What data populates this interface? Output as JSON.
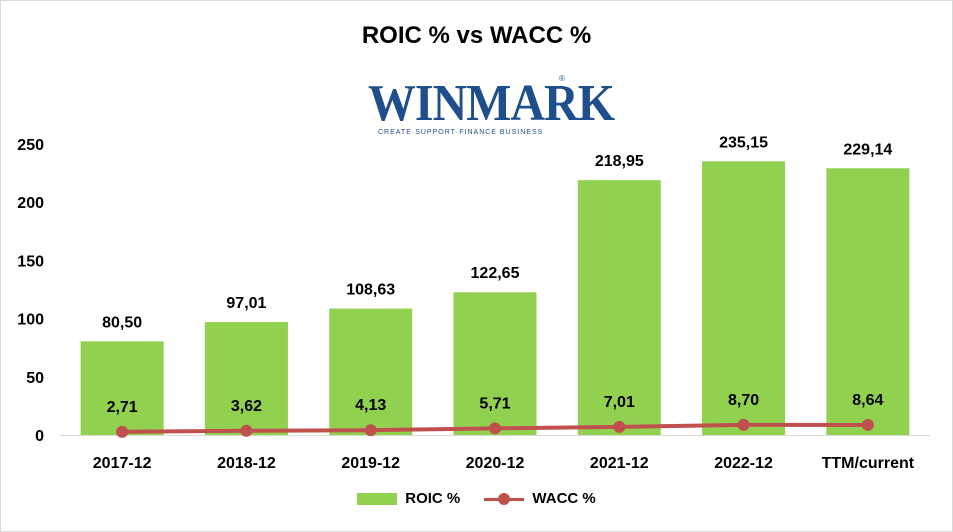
{
  "logo": {
    "text": "WINMARK",
    "registered": "®",
    "tagline": "CREATE·SUPPORT·FINANCE BUSINESS"
  },
  "chart_data": {
    "type": "bar",
    "title": "ROIC % vs WACC %",
    "categories": [
      "2017-12",
      "2018-12",
      "2019-12",
      "2020-12",
      "2021-12",
      "2022-12",
      "TTM/current"
    ],
    "series": [
      {
        "name": "ROIC %",
        "type": "bar",
        "color": "#92d050",
        "values": [
          80.5,
          97.01,
          108.63,
          122.65,
          218.95,
          235.15,
          229.14
        ],
        "labels": [
          "80,50",
          "97,01",
          "108,63",
          "122,65",
          "218,95",
          "235,15",
          "229,14"
        ]
      },
      {
        "name": "WACC %",
        "type": "line",
        "color": "#c0504d",
        "values": [
          2.71,
          3.62,
          4.13,
          5.71,
          7.01,
          8.7,
          8.64
        ],
        "labels": [
          "2,71",
          "3,62",
          "4,13",
          "5,71",
          "7,01",
          "8,70",
          "8,64"
        ]
      }
    ],
    "ylim": [
      0,
      250
    ],
    "yticks": [
      0,
      50,
      100,
      150,
      200,
      250
    ],
    "grid": false,
    "legend": "bottom"
  }
}
